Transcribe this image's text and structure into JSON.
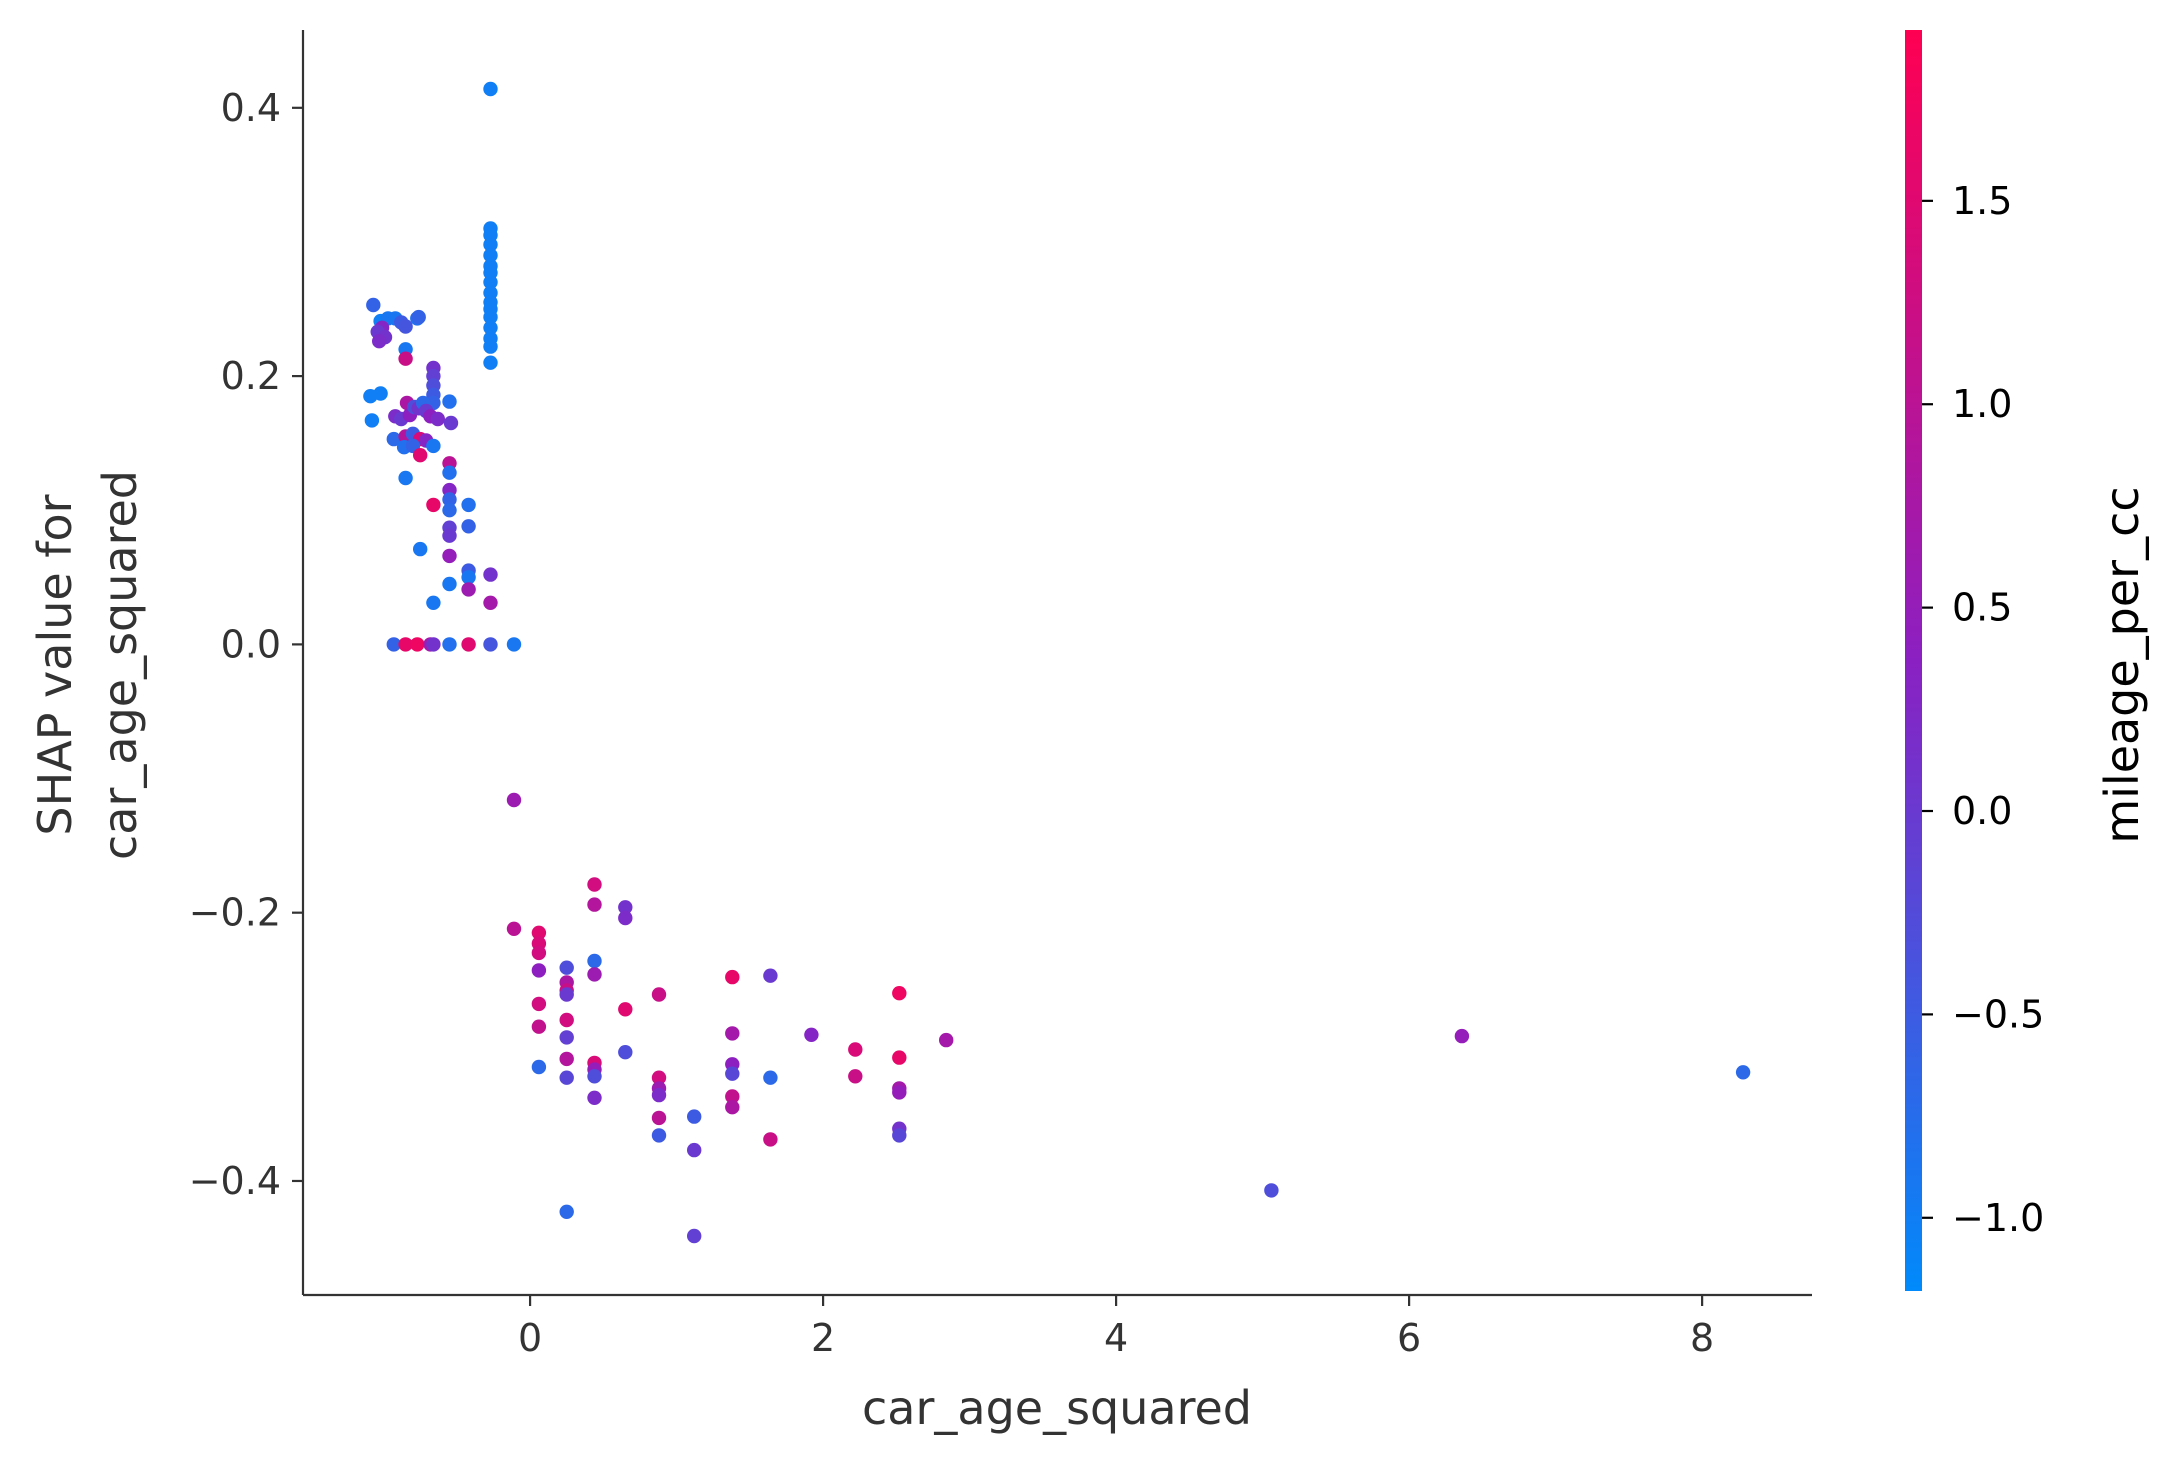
{
  "chart_data": {
    "type": "scatter",
    "title": "",
    "xlabel": "car_age_squared",
    "ylabel_lines": [
      "SHAP value for",
      "car_age_squared"
    ],
    "xlim": [
      -1.55,
      8.75
    ],
    "ylim": [
      -0.485,
      0.458
    ],
    "xticks": [
      0,
      2,
      4,
      6,
      8
    ],
    "xtick_labels": [
      "0",
      "2",
      "4",
      "6",
      "8"
    ],
    "yticks": [
      0.4,
      0.2,
      0.0,
      -0.2,
      -0.4
    ],
    "ytick_labels": [
      "0.4",
      "0.2",
      "0.0",
      "−0.2",
      "−0.4"
    ],
    "grid": false,
    "spines": [
      "left",
      "bottom"
    ],
    "colorbar": {
      "label": "mileage_per_cc",
      "range": [
        -1.18,
        1.92
      ],
      "ticks": [
        1.5,
        1.0,
        0.5,
        0.0,
        -0.5,
        -1.0
      ],
      "tick_labels": [
        "1.5",
        "1.0",
        "0.5",
        "0.0",
        "−0.5",
        "−1.0"
      ],
      "colors": [
        "#008afb",
        "#ff0052"
      ]
    },
    "points": [
      {
        "x": -0.27,
        "y": 0.414,
        "c": -1.0
      },
      {
        "x": -0.27,
        "y": 0.31,
        "c": -1.0
      },
      {
        "x": -0.27,
        "y": 0.305,
        "c": -1.0
      },
      {
        "x": -0.27,
        "y": 0.298,
        "c": -1.0
      },
      {
        "x": -0.27,
        "y": 0.29,
        "c": -1.0
      },
      {
        "x": -0.27,
        "y": 0.282,
        "c": -1.0
      },
      {
        "x": -0.27,
        "y": 0.277,
        "c": -1.0
      },
      {
        "x": -0.27,
        "y": 0.27,
        "c": -1.0
      },
      {
        "x": -0.27,
        "y": 0.262,
        "c": -1.0
      },
      {
        "x": -0.27,
        "y": 0.255,
        "c": -1.0
      },
      {
        "x": -0.27,
        "y": 0.25,
        "c": -1.0
      },
      {
        "x": -0.27,
        "y": 0.244,
        "c": -1.0
      },
      {
        "x": -0.27,
        "y": 0.236,
        "c": -1.0
      },
      {
        "x": -0.27,
        "y": 0.228,
        "c": -1.0
      },
      {
        "x": -0.27,
        "y": 0.222,
        "c": -1.0
      },
      {
        "x": -0.27,
        "y": 0.21,
        "c": -1.0
      },
      {
        "x": -1.07,
        "y": 0.253,
        "c": -0.6
      },
      {
        "x": -1.02,
        "y": 0.241,
        "c": -1.0
      },
      {
        "x": -0.97,
        "y": 0.243,
        "c": -0.9
      },
      {
        "x": -1.01,
        "y": 0.236,
        "c": 0.3
      },
      {
        "x": -1.04,
        "y": 0.233,
        "c": 0.0
      },
      {
        "x": -0.99,
        "y": 0.229,
        "c": 0.1
      },
      {
        "x": -1.03,
        "y": 0.226,
        "c": 0.2
      },
      {
        "x": -0.92,
        "y": 0.243,
        "c": -0.9
      },
      {
        "x": -0.88,
        "y": 0.24,
        "c": -0.5
      },
      {
        "x": -0.85,
        "y": 0.237,
        "c": -0.4
      },
      {
        "x": -0.77,
        "y": 0.243,
        "c": -0.8
      },
      {
        "x": -0.76,
        "y": 0.244,
        "c": -0.6
      },
      {
        "x": -0.85,
        "y": 0.22,
        "c": -0.9
      },
      {
        "x": -0.85,
        "y": 0.213,
        "c": 1.2
      },
      {
        "x": -0.66,
        "y": 0.206,
        "c": 0.1
      },
      {
        "x": -0.66,
        "y": 0.2,
        "c": -0.1
      },
      {
        "x": -0.66,
        "y": 0.193,
        "c": -0.3
      },
      {
        "x": -0.66,
        "y": 0.186,
        "c": -0.5
      },
      {
        "x": -0.66,
        "y": 0.18,
        "c": -0.6
      },
      {
        "x": -1.09,
        "y": 0.185,
        "c": -1.0
      },
      {
        "x": -1.02,
        "y": 0.187,
        "c": -1.0
      },
      {
        "x": -1.08,
        "y": 0.167,
        "c": -1.0
      },
      {
        "x": -0.92,
        "y": 0.17,
        "c": 0.2
      },
      {
        "x": -0.88,
        "y": 0.168,
        "c": 0.0
      },
      {
        "x": -0.84,
        "y": 0.18,
        "c": 0.8
      },
      {
        "x": -0.82,
        "y": 0.171,
        "c": 0.4
      },
      {
        "x": -0.79,
        "y": 0.177,
        "c": -0.3
      },
      {
        "x": -0.76,
        "y": 0.176,
        "c": 0.1
      },
      {
        "x": -0.73,
        "y": 0.18,
        "c": -0.7
      },
      {
        "x": -0.71,
        "y": 0.174,
        "c": 0.0
      },
      {
        "x": -0.68,
        "y": 0.17,
        "c": 0.4
      },
      {
        "x": -0.63,
        "y": 0.168,
        "c": 0.2
      },
      {
        "x": -0.55,
        "y": 0.181,
        "c": -0.8
      },
      {
        "x": -0.54,
        "y": 0.165,
        "c": 0.0
      },
      {
        "x": -0.93,
        "y": 0.153,
        "c": -0.7
      },
      {
        "x": -0.85,
        "y": 0.155,
        "c": 0.9
      },
      {
        "x": -0.8,
        "y": 0.157,
        "c": -0.5
      },
      {
        "x": -0.75,
        "y": 0.153,
        "c": 1.4
      },
      {
        "x": -0.71,
        "y": 0.152,
        "c": 0.3
      },
      {
        "x": -0.86,
        "y": 0.147,
        "c": -0.8
      },
      {
        "x": -0.8,
        "y": 0.148,
        "c": -0.6
      },
      {
        "x": -0.66,
        "y": 0.148,
        "c": -0.9
      },
      {
        "x": -0.75,
        "y": 0.141,
        "c": 1.5
      },
      {
        "x": -0.55,
        "y": 0.135,
        "c": 1.0
      },
      {
        "x": -0.55,
        "y": 0.128,
        "c": -0.8
      },
      {
        "x": -0.85,
        "y": 0.124,
        "c": -0.9
      },
      {
        "x": -0.55,
        "y": 0.115,
        "c": 0.3
      },
      {
        "x": -0.55,
        "y": 0.108,
        "c": -0.6
      },
      {
        "x": -0.55,
        "y": 0.1,
        "c": -0.7
      },
      {
        "x": -0.66,
        "y": 0.104,
        "c": 1.6
      },
      {
        "x": -0.42,
        "y": 0.104,
        "c": -0.8
      },
      {
        "x": -0.42,
        "y": 0.088,
        "c": -0.6
      },
      {
        "x": -0.55,
        "y": 0.087,
        "c": -0.1
      },
      {
        "x": -0.55,
        "y": 0.081,
        "c": 0.0
      },
      {
        "x": -0.75,
        "y": 0.071,
        "c": -0.9
      },
      {
        "x": -0.55,
        "y": 0.066,
        "c": 0.5
      },
      {
        "x": -0.42,
        "y": 0.055,
        "c": -0.5
      },
      {
        "x": -0.42,
        "y": 0.05,
        "c": -0.9
      },
      {
        "x": -0.27,
        "y": 0.052,
        "c": 0.1
      },
      {
        "x": -0.55,
        "y": 0.045,
        "c": -0.9
      },
      {
        "x": -0.42,
        "y": 0.041,
        "c": 0.6
      },
      {
        "x": -0.66,
        "y": 0.031,
        "c": -0.9
      },
      {
        "x": -0.27,
        "y": 0.031,
        "c": 0.7
      },
      {
        "x": -0.93,
        "y": 0.0,
        "c": -0.6
      },
      {
        "x": -0.85,
        "y": 0.0,
        "c": 1.6
      },
      {
        "x": -0.77,
        "y": 0.0,
        "c": 1.7
      },
      {
        "x": -0.68,
        "y": 0.0,
        "c": 0.7
      },
      {
        "x": -0.66,
        "y": 0.0,
        "c": 0.1
      },
      {
        "x": -0.55,
        "y": 0.0,
        "c": -0.8
      },
      {
        "x": -0.42,
        "y": 0.0,
        "c": 1.5
      },
      {
        "x": -0.27,
        "y": 0.0,
        "c": -0.4
      },
      {
        "x": -0.11,
        "y": 0.0,
        "c": -0.9
      },
      {
        "x": -0.11,
        "y": -0.116,
        "c": 0.6
      },
      {
        "x": -0.11,
        "y": -0.212,
        "c": 1.0
      },
      {
        "x": 0.06,
        "y": -0.215,
        "c": 1.5
      },
      {
        "x": 0.06,
        "y": -0.223,
        "c": 1.4
      },
      {
        "x": 0.06,
        "y": -0.23,
        "c": 1.3
      },
      {
        "x": 0.06,
        "y": -0.243,
        "c": 0.4
      },
      {
        "x": 0.06,
        "y": -0.268,
        "c": 1.3
      },
      {
        "x": 0.06,
        "y": -0.285,
        "c": 1.1
      },
      {
        "x": 0.06,
        "y": -0.315,
        "c": -0.7
      },
      {
        "x": 0.25,
        "y": -0.241,
        "c": -0.3
      },
      {
        "x": 0.25,
        "y": -0.252,
        "c": 0.8
      },
      {
        "x": 0.25,
        "y": -0.258,
        "c": 1.2
      },
      {
        "x": 0.25,
        "y": -0.261,
        "c": 0.0
      },
      {
        "x": 0.25,
        "y": -0.28,
        "c": 1.3
      },
      {
        "x": 0.25,
        "y": -0.293,
        "c": -0.1
      },
      {
        "x": 0.25,
        "y": -0.309,
        "c": 0.9
      },
      {
        "x": 0.25,
        "y": -0.323,
        "c": -0.2
      },
      {
        "x": 0.25,
        "y": -0.423,
        "c": -0.7
      },
      {
        "x": 0.44,
        "y": -0.179,
        "c": 1.3
      },
      {
        "x": 0.44,
        "y": -0.194,
        "c": 0.9
      },
      {
        "x": 0.44,
        "y": -0.236,
        "c": -0.7
      },
      {
        "x": 0.44,
        "y": -0.246,
        "c": 0.6
      },
      {
        "x": 0.44,
        "y": -0.312,
        "c": 1.4
      },
      {
        "x": 0.44,
        "y": -0.317,
        "c": 0.5
      },
      {
        "x": 0.44,
        "y": -0.322,
        "c": -0.3
      },
      {
        "x": 0.44,
        "y": -0.338,
        "c": 0.2
      },
      {
        "x": 0.65,
        "y": -0.196,
        "c": 0.1
      },
      {
        "x": 0.65,
        "y": -0.204,
        "c": 0.2
      },
      {
        "x": 0.65,
        "y": -0.272,
        "c": 1.5
      },
      {
        "x": 0.65,
        "y": -0.304,
        "c": -0.3
      },
      {
        "x": 0.88,
        "y": -0.261,
        "c": 1.2
      },
      {
        "x": 0.88,
        "y": -0.323,
        "c": 1.3
      },
      {
        "x": 0.88,
        "y": -0.331,
        "c": 0.6
      },
      {
        "x": 0.88,
        "y": -0.336,
        "c": 0.2
      },
      {
        "x": 0.88,
        "y": -0.353,
        "c": 1.0
      },
      {
        "x": 0.88,
        "y": -0.366,
        "c": -0.5
      },
      {
        "x": 1.12,
        "y": -0.352,
        "c": -0.5
      },
      {
        "x": 1.12,
        "y": -0.377,
        "c": 0.0
      },
      {
        "x": 1.12,
        "y": -0.441,
        "c": -0.1
      },
      {
        "x": 1.38,
        "y": -0.248,
        "c": 1.6
      },
      {
        "x": 1.38,
        "y": -0.29,
        "c": 0.7
      },
      {
        "x": 1.38,
        "y": -0.313,
        "c": 0.4
      },
      {
        "x": 1.38,
        "y": -0.32,
        "c": -0.2
      },
      {
        "x": 1.38,
        "y": -0.337,
        "c": 1.1
      },
      {
        "x": 1.38,
        "y": -0.345,
        "c": 0.8
      },
      {
        "x": 1.64,
        "y": -0.247,
        "c": 0.0
      },
      {
        "x": 1.64,
        "y": -0.323,
        "c": -0.7
      },
      {
        "x": 1.64,
        "y": -0.369,
        "c": 1.2
      },
      {
        "x": 1.92,
        "y": -0.291,
        "c": 0.3
      },
      {
        "x": 2.22,
        "y": -0.302,
        "c": 1.4
      },
      {
        "x": 2.22,
        "y": -0.322,
        "c": 1.2
      },
      {
        "x": 2.52,
        "y": -0.26,
        "c": 1.7
      },
      {
        "x": 2.52,
        "y": -0.308,
        "c": 1.6
      },
      {
        "x": 2.52,
        "y": -0.331,
        "c": 0.7
      },
      {
        "x": 2.52,
        "y": -0.334,
        "c": 0.5
      },
      {
        "x": 2.52,
        "y": -0.361,
        "c": 0.1
      },
      {
        "x": 2.52,
        "y": -0.366,
        "c": -0.2
      },
      {
        "x": 2.84,
        "y": -0.295,
        "c": 0.7
      },
      {
        "x": 5.06,
        "y": -0.407,
        "c": -0.3
      },
      {
        "x": 6.36,
        "y": -0.292,
        "c": 0.5
      },
      {
        "x": 8.28,
        "y": -0.319,
        "c": -0.7
      }
    ]
  }
}
